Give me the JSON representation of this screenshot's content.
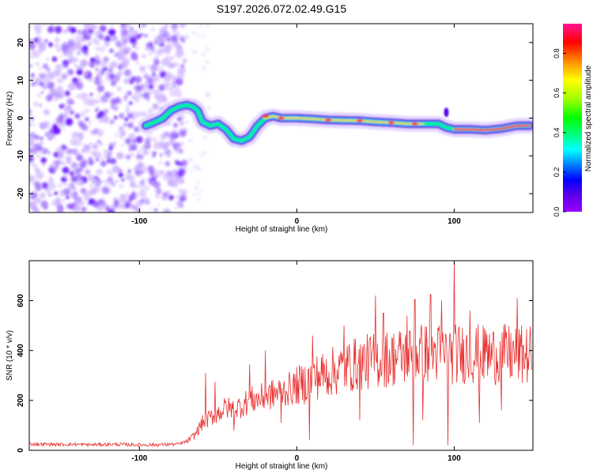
{
  "figure_title": "S197.2026.072.02.49.G15",
  "chart_data": [
    {
      "type": "heatmap",
      "title": "S197.2026.072.02.49.G15",
      "xlabel": "Height of straight line (km)",
      "ylabel": "Frequency (Hz)",
      "xlim": [
        -170,
        150
      ],
      "ylim": [
        -25,
        25
      ],
      "xticks": [
        -100,
        0,
        100
      ],
      "yticks": [
        -20,
        -10,
        0,
        10,
        20
      ],
      "noise_region_x": [
        -170,
        -71
      ],
      "ridge": {
        "x": [
          -96,
          -90,
          -85,
          -80,
          -75,
          -70,
          -66,
          -63,
          -60,
          -55,
          -50,
          -45,
          -40,
          -35,
          -30,
          -25,
          -20,
          -15,
          -10,
          0,
          10,
          20,
          30,
          40,
          50,
          60,
          70,
          80,
          90,
          95,
          100,
          110,
          120,
          130,
          140,
          148
        ],
        "y": [
          -2,
          -1,
          0,
          2,
          3,
          3.5,
          3,
          2,
          -1,
          -2,
          -1.5,
          -3,
          -5.5,
          -6,
          -5,
          -2,
          0,
          0.5,
          0,
          0,
          -0.2,
          -0.5,
          -0.6,
          -0.7,
          -1,
          -1.2,
          -1.5,
          -1.5,
          -1.5,
          -2.5,
          -3,
          -3,
          -3.2,
          -2.8,
          -2,
          -2
        ]
      },
      "colorbar": {
        "label": "Normalized spectral amplitude",
        "ticks": [
          0.0,
          0.2,
          0.4,
          0.6,
          0.8
        ],
        "range": [
          0,
          0.95
        ]
      }
    },
    {
      "type": "line",
      "xlabel": "Height of straight line (km)",
      "ylabel": "SNR (10 * v/v)",
      "xlim": [
        -170,
        150
      ],
      "ylim": [
        0,
        760
      ],
      "xticks": [
        -100,
        0,
        100
      ],
      "yticks": [
        0,
        200,
        400,
        600
      ],
      "series_color": "#e8302f",
      "series": [
        {
          "name": "SNR",
          "x": [
            -170,
            -160,
            -150,
            -140,
            -130,
            -120,
            -110,
            -100,
            -90,
            -80,
            -75,
            -70,
            -65,
            -60,
            -55,
            -50,
            -45,
            -40,
            -35,
            -30,
            -25,
            -20,
            -15,
            -10,
            -5,
            0,
            5,
            10,
            20,
            30,
            40,
            50,
            60,
            70,
            80,
            90,
            100,
            110,
            120,
            130,
            140,
            150
          ],
          "values": [
            25,
            24,
            23,
            24,
            22,
            24,
            23,
            22,
            22,
            24,
            25,
            35,
            60,
            110,
            130,
            150,
            170,
            165,
            180,
            200,
            205,
            215,
            225,
            235,
            245,
            255,
            270,
            290,
            310,
            330,
            350,
            360,
            370,
            380,
            390,
            390,
            385,
            390,
            380,
            385,
            380,
            380
          ]
        }
      ],
      "peaks": {
        "x": [
          -58,
          -52,
          -30,
          -20,
          10,
          30,
          50,
          55,
          70,
          75,
          85,
          92,
          100,
          110,
          120,
          140,
          148
        ],
        "values": [
          310,
          275,
          345,
          400,
          460,
          500,
          620,
          550,
          540,
          605,
          625,
          600,
          760,
          560,
          480,
          610,
          460
        ]
      },
      "dips": {
        "x": [
          -40,
          -10,
          8,
          40,
          74,
          80,
          96,
          116,
          130
        ],
        "values": [
          80,
          110,
          40,
          120,
          20,
          120,
          20,
          110,
          160
        ]
      }
    }
  ]
}
